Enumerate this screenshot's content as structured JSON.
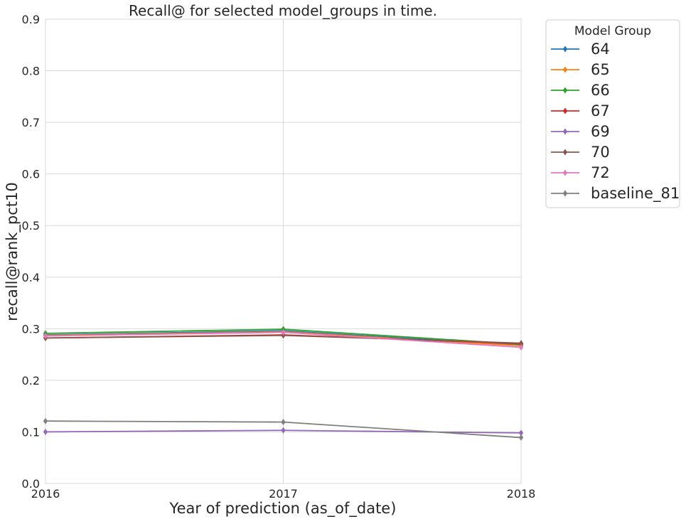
{
  "chart_data": {
    "type": "line",
    "title": "Recall@ for selected model_groups in time.",
    "xlabel": "Year of prediction (as_of_date)",
    "ylabel": "recall@rank_pct10",
    "x": [
      2016,
      2017,
      2018
    ],
    "x_tick_labels": [
      "2016",
      "2017",
      "2018"
    ],
    "xlim": [
      2016,
      2018
    ],
    "ylim": [
      0,
      0.9
    ],
    "y_ticks": [
      0.0,
      0.1,
      0.2,
      0.3,
      0.4,
      0.5,
      0.6,
      0.7,
      0.8,
      0.9
    ],
    "y_tick_labels": [
      "0.0",
      "0.1",
      "0.2",
      "0.3",
      "0.4",
      "0.5",
      "0.6",
      "0.7",
      "0.8",
      "0.9"
    ],
    "grid": true,
    "marker": "diamond",
    "legend": {
      "title": "Model Group",
      "placement": "outside-top-right"
    },
    "series": [
      {
        "name": "64",
        "color": "#1f77b4",
        "values": [
          0.288,
          0.296,
          0.268
        ]
      },
      {
        "name": "65",
        "color": "#ff7f0e",
        "values": [
          0.287,
          0.294,
          0.267
        ]
      },
      {
        "name": "66",
        "color": "#2ca02c",
        "values": [
          0.291,
          0.299,
          0.27
        ]
      },
      {
        "name": "67",
        "color": "#d62728",
        "values": [
          0.282,
          0.288,
          0.271
        ]
      },
      {
        "name": "69",
        "color": "#9467bd",
        "values": [
          0.1,
          0.103,
          0.098
        ]
      },
      {
        "name": "70",
        "color": "#8c564b",
        "values": [
          0.282,
          0.287,
          0.272
        ]
      },
      {
        "name": "72",
        "color": "#e377c2",
        "values": [
          0.286,
          0.293,
          0.264
        ]
      },
      {
        "name": "baseline_81",
        "color": "#7f7f7f",
        "values": [
          0.121,
          0.119,
          0.089
        ]
      }
    ]
  }
}
